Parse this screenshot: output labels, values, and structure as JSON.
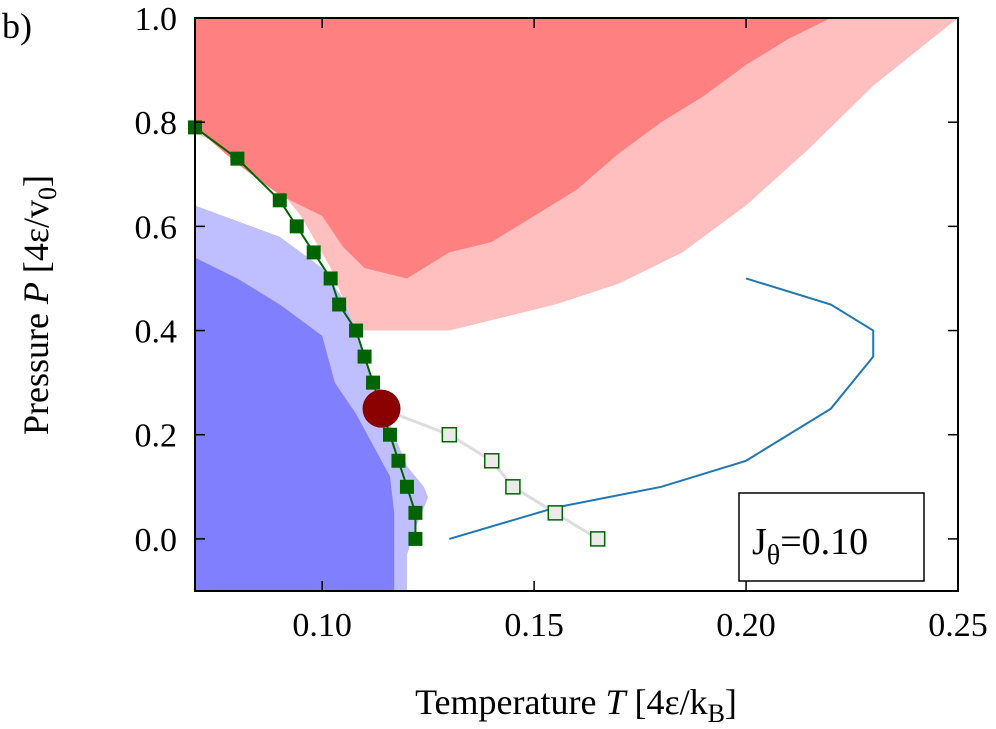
{
  "chart_data": {
    "type": "line",
    "panel_label": "b)",
    "xlabel_parts": [
      "Temperature ",
      "T",
      " [4ε/k",
      "B",
      "]"
    ],
    "ylabel_parts": [
      "Pressure ",
      "P",
      " [4ε/v",
      "0",
      "]"
    ],
    "xlim": [
      0.07,
      0.25
    ],
    "ylim": [
      -0.1,
      1.0
    ],
    "xticks": [
      {
        "value": 0.1,
        "label": "0.10"
      },
      {
        "value": 0.15,
        "label": "0.15"
      },
      {
        "value": 0.2,
        "label": "0.20"
      },
      {
        "value": 0.25,
        "label": "0.25"
      }
    ],
    "yticks": [
      {
        "value": 0.0,
        "label": "0.0"
      },
      {
        "value": 0.2,
        "label": "0.2"
      },
      {
        "value": 0.4,
        "label": "0.4"
      },
      {
        "value": 0.6,
        "label": "0.6"
      },
      {
        "value": 0.8,
        "label": "0.8"
      },
      {
        "value": 1.0,
        "label": "1.0"
      }
    ],
    "annotation": {
      "text_main": "J",
      "text_sub": "θ",
      "text_value": "=0.10"
    },
    "regions": [
      {
        "name": "light-red-region",
        "color": "#ffbfbf",
        "polygon": [
          [
            0.07,
            0.78
          ],
          [
            0.085,
            0.72
          ],
          [
            0.095,
            0.62
          ],
          [
            0.102,
            0.52
          ],
          [
            0.106,
            0.44
          ],
          [
            0.108,
            0.4
          ],
          [
            0.13,
            0.4
          ],
          [
            0.14,
            0.42
          ],
          [
            0.155,
            0.45
          ],
          [
            0.17,
            0.49
          ],
          [
            0.185,
            0.55
          ],
          [
            0.2,
            0.64
          ],
          [
            0.215,
            0.75
          ],
          [
            0.23,
            0.87
          ],
          [
            0.25,
            1.0
          ],
          [
            0.07,
            1.0
          ]
        ]
      },
      {
        "name": "dark-red-region",
        "color": "#ff8080",
        "polygon": [
          [
            0.07,
            1.0
          ],
          [
            0.07,
            0.79
          ],
          [
            0.08,
            0.72
          ],
          [
            0.09,
            0.66
          ],
          [
            0.1,
            0.62
          ],
          [
            0.105,
            0.56
          ],
          [
            0.11,
            0.52
          ],
          [
            0.12,
            0.5
          ],
          [
            0.13,
            0.55
          ],
          [
            0.14,
            0.57
          ],
          [
            0.15,
            0.62
          ],
          [
            0.16,
            0.67
          ],
          [
            0.17,
            0.74
          ],
          [
            0.18,
            0.8
          ],
          [
            0.19,
            0.85
          ],
          [
            0.2,
            0.91
          ],
          [
            0.21,
            0.96
          ],
          [
            0.22,
            1.0
          ]
        ]
      },
      {
        "name": "light-blue-region",
        "color": "#bfbfff",
        "polygon": [
          [
            0.07,
            0.64
          ],
          [
            0.08,
            0.61
          ],
          [
            0.09,
            0.58
          ],
          [
            0.1,
            0.52
          ],
          [
            0.105,
            0.46
          ],
          [
            0.108,
            0.4
          ],
          [
            0.112,
            0.3
          ],
          [
            0.116,
            0.22
          ],
          [
            0.12,
            0.14
          ],
          [
            0.124,
            0.1
          ],
          [
            0.125,
            0.08
          ],
          [
            0.122,
            0.02
          ],
          [
            0.12,
            -0.03
          ],
          [
            0.12,
            -0.1
          ],
          [
            0.07,
            -0.1
          ]
        ]
      },
      {
        "name": "dark-blue-region",
        "color": "#8080ff",
        "polygon": [
          [
            0.07,
            0.54
          ],
          [
            0.08,
            0.5
          ],
          [
            0.09,
            0.45
          ],
          [
            0.1,
            0.39
          ],
          [
            0.103,
            0.3
          ],
          [
            0.108,
            0.24
          ],
          [
            0.112,
            0.18
          ],
          [
            0.116,
            0.12
          ],
          [
            0.117,
            0.05
          ],
          [
            0.117,
            -0.03
          ],
          [
            0.117,
            -0.1
          ],
          [
            0.07,
            -0.1
          ]
        ]
      }
    ],
    "series": [
      {
        "name": "filled-squares-line",
        "line_color": "#006400",
        "marker": "filled-square",
        "marker_color": "#006400",
        "points": [
          [
            0.07,
            0.79
          ],
          [
            0.08,
            0.73
          ],
          [
            0.09,
            0.65
          ],
          [
            0.094,
            0.6
          ],
          [
            0.098,
            0.55
          ],
          [
            0.102,
            0.5
          ],
          [
            0.104,
            0.45
          ],
          [
            0.108,
            0.4
          ],
          [
            0.11,
            0.35
          ],
          [
            0.112,
            0.3
          ],
          [
            0.116,
            0.2
          ],
          [
            0.118,
            0.15
          ],
          [
            0.12,
            0.1
          ],
          [
            0.122,
            0.05
          ],
          [
            0.122,
            0.0
          ]
        ]
      },
      {
        "name": "open-squares-line",
        "line_color": "#dddddd",
        "marker": "open-square",
        "marker_color": "#006400",
        "points": [
          [
            0.114,
            0.25
          ],
          [
            0.13,
            0.2
          ],
          [
            0.14,
            0.15
          ],
          [
            0.145,
            0.1
          ],
          [
            0.155,
            0.05
          ],
          [
            0.165,
            0.0
          ]
        ]
      },
      {
        "name": "blue-curve",
        "line_color": "#1f77b4",
        "marker": "none",
        "points": [
          [
            0.13,
            0.0
          ],
          [
            0.155,
            0.06
          ],
          [
            0.18,
            0.1
          ],
          [
            0.2,
            0.15
          ],
          [
            0.22,
            0.25
          ],
          [
            0.23,
            0.35
          ],
          [
            0.23,
            0.4
          ],
          [
            0.22,
            0.45
          ],
          [
            0.2,
            0.5
          ]
        ]
      }
    ],
    "critical_point": {
      "x": 0.114,
      "y": 0.25,
      "color": "#8b0000"
    }
  }
}
